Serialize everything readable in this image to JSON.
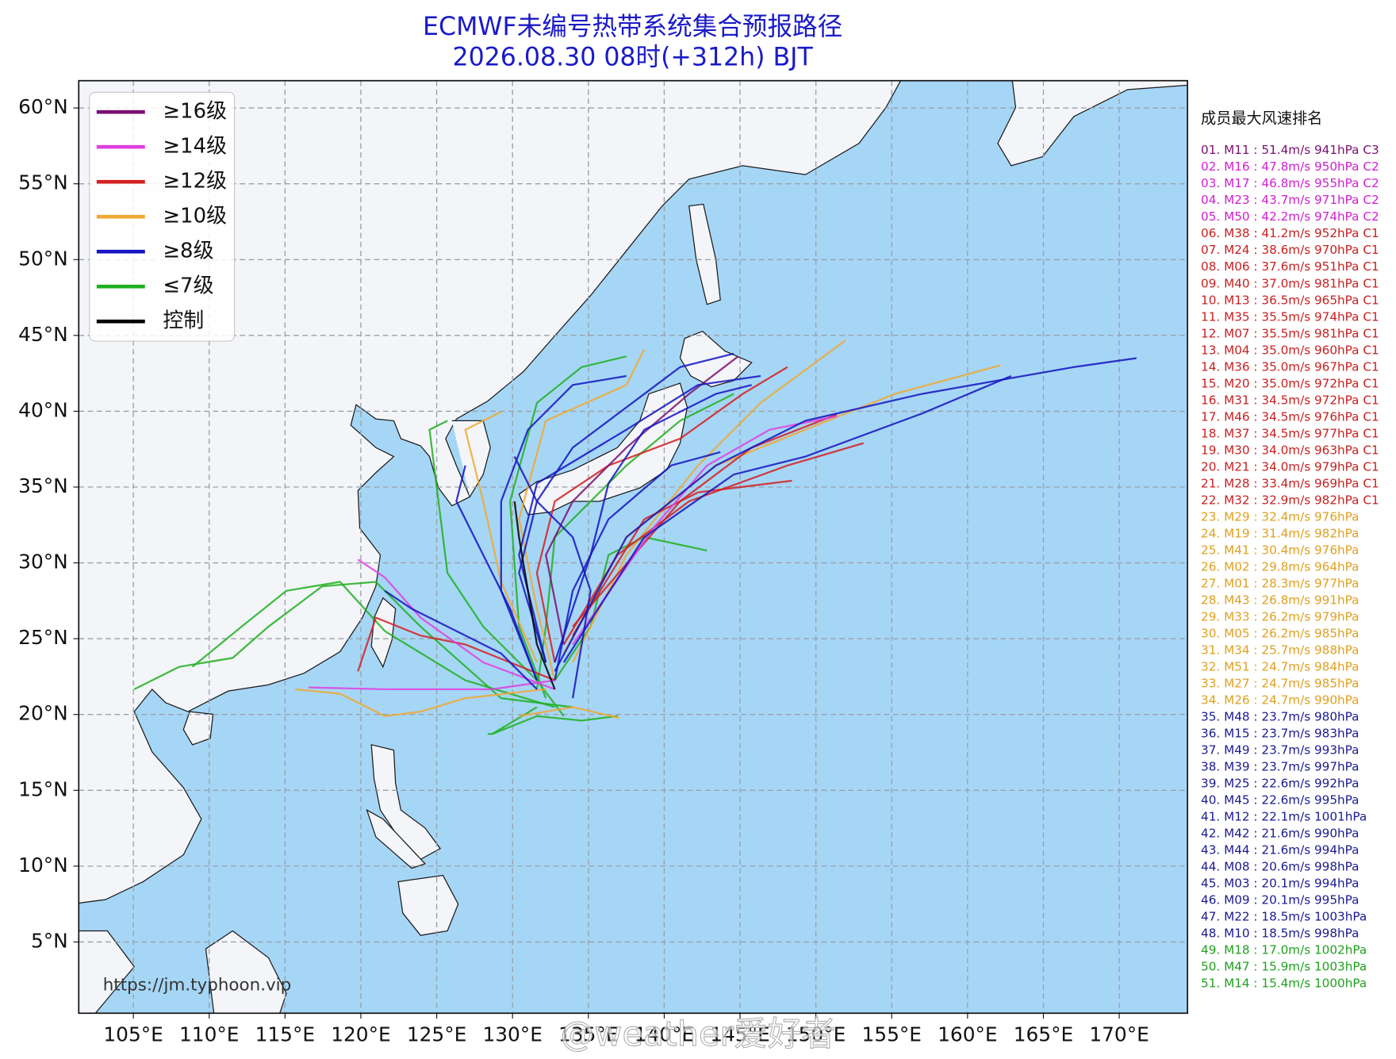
{
  "chart_data": {
    "type": "track-map",
    "title": "ECMWF未编号热带系统集合预报路径",
    "subtitle": "2026.08.30 08时(+312h) BJT",
    "title_color": "#1a1ac8",
    "xlim": [
      101.4,
      174.5
    ],
    "ylim": [
      0.3,
      61.8
    ],
    "grid": true,
    "xticks": [
      {
        "value": 105,
        "label": "105°E"
      },
      {
        "value": 110,
        "label": "110°E"
      },
      {
        "value": 115,
        "label": "115°E"
      },
      {
        "value": 120,
        "label": "120°E"
      },
      {
        "value": 125,
        "label": "125°E"
      },
      {
        "value": 130,
        "label": "130°E"
      },
      {
        "value": 135,
        "label": "135°E"
      },
      {
        "value": 140,
        "label": "140°E"
      },
      {
        "value": 145,
        "label": "145°E"
      },
      {
        "value": 150,
        "label": "150°E"
      },
      {
        "value": 155,
        "label": "155°E"
      },
      {
        "value": 160,
        "label": "160°E"
      },
      {
        "value": 165,
        "label": "165°E"
      },
      {
        "value": 170,
        "label": "170°E"
      }
    ],
    "yticks": [
      {
        "value": 5,
        "label": "5°N"
      },
      {
        "value": 10,
        "label": "10°N"
      },
      {
        "value": 15,
        "label": "15°N"
      },
      {
        "value": 20,
        "label": "20°N"
      },
      {
        "value": 25,
        "label": "25°N"
      },
      {
        "value": 30,
        "label": "30°N"
      },
      {
        "value": 35,
        "label": "35°N"
      },
      {
        "value": 40,
        "label": "40°N"
      },
      {
        "value": 45,
        "label": "45°N"
      },
      {
        "value": 50,
        "label": "50°N"
      },
      {
        "value": 55,
        "label": "55°N"
      },
      {
        "value": 60,
        "label": "60°N"
      }
    ],
    "legend": [
      {
        "name": "≥16级",
        "color": "#7a1070"
      },
      {
        "name": "≥14级",
        "color": "#e040e0"
      },
      {
        "name": "≥12级",
        "color": "#d42020"
      },
      {
        "name": "≥10级",
        "color": "#f0a830"
      },
      {
        "name": "≥8级",
        "color": "#1414c0"
      },
      {
        "name": "≤7级",
        "color": "#20b020"
      },
      {
        "name": "控制",
        "color": "#000000"
      }
    ],
    "ranking": {
      "title": "成员最大风速排名",
      "items": [
        {
          "text": "01. M11 : 51.4m/s 941hPa C3",
          "color": "#7a1070"
        },
        {
          "text": "02. M16 : 47.8m/s 950hPa C2",
          "color": "#d020d0"
        },
        {
          "text": "03. M17 : 46.8m/s 955hPa C2",
          "color": "#d020d0"
        },
        {
          "text": "04. M23 : 43.7m/s 971hPa C2",
          "color": "#d020d0"
        },
        {
          "text": "05. M50 : 42.2m/s 974hPa C2",
          "color": "#d020d0"
        },
        {
          "text": "06. M38 : 41.2m/s 952hPa C1",
          "color": "#c82020"
        },
        {
          "text": "07. M24 : 38.6m/s 970hPa C1",
          "color": "#c82020"
        },
        {
          "text": "08. M06 : 37.6m/s 951hPa C1",
          "color": "#c82020"
        },
        {
          "text": "09. M40 : 37.0m/s 981hPa C1",
          "color": "#c82020"
        },
        {
          "text": "10. M13 : 36.5m/s 965hPa C1",
          "color": "#c82020"
        },
        {
          "text": "11. M35 : 35.5m/s 974hPa C1",
          "color": "#c82020"
        },
        {
          "text": "12. M07 : 35.5m/s 981hPa C1",
          "color": "#c82020"
        },
        {
          "text": "13. M04 : 35.0m/s 960hPa C1",
          "color": "#c82020"
        },
        {
          "text": "14. M36 : 35.0m/s 967hPa C1",
          "color": "#c82020"
        },
        {
          "text": "15. M20 : 35.0m/s 972hPa C1",
          "color": "#c82020"
        },
        {
          "text": "16. M31 : 34.5m/s 972hPa C1",
          "color": "#c82020"
        },
        {
          "text": "17. M46 : 34.5m/s 976hPa C1",
          "color": "#c82020"
        },
        {
          "text": "18. M37 : 34.5m/s 977hPa C1",
          "color": "#c82020"
        },
        {
          "text": "19. M30 : 34.0m/s 963hPa C1",
          "color": "#c82020"
        },
        {
          "text": "20. M21 : 34.0m/s 979hPa C1",
          "color": "#c82020"
        },
        {
          "text": "21. M28 : 33.4m/s 969hPa C1",
          "color": "#c82020"
        },
        {
          "text": "22. M32 : 32.9m/s 982hPa C1",
          "color": "#c82020"
        },
        {
          "text": "23. M29 : 32.4m/s 976hPa",
          "color": "#e0a020"
        },
        {
          "text": "24. M19 : 31.4m/s 982hPa",
          "color": "#e0a020"
        },
        {
          "text": "25. M41 : 30.4m/s 976hPa",
          "color": "#e0a020"
        },
        {
          "text": "26. M02 : 29.8m/s 964hPa",
          "color": "#e0a020"
        },
        {
          "text": "27. M01 : 28.3m/s 977hPa",
          "color": "#e0a020"
        },
        {
          "text": "28. M43 : 26.8m/s 991hPa",
          "color": "#e0a020"
        },
        {
          "text": "29. M33 : 26.2m/s 979hPa",
          "color": "#e0a020"
        },
        {
          "text": "30. M05 : 26.2m/s 985hPa",
          "color": "#e0a020"
        },
        {
          "text": "31. M34 : 25.7m/s 988hPa",
          "color": "#e0a020"
        },
        {
          "text": "32. M51 : 24.7m/s 984hPa",
          "color": "#e0a020"
        },
        {
          "text": "33. M27 : 24.7m/s 985hPa",
          "color": "#e0a020"
        },
        {
          "text": "34. M26 : 24.7m/s 990hPa",
          "color": "#e0a020"
        },
        {
          "text": "35. M48 : 23.7m/s 980hPa",
          "color": "#1a1a90"
        },
        {
          "text": "36. M15 : 23.7m/s 983hPa",
          "color": "#1a1a90"
        },
        {
          "text": "37. M49 : 23.7m/s 993hPa",
          "color": "#1a1a90"
        },
        {
          "text": "38. M39 : 23.7m/s 997hPa",
          "color": "#1a1a90"
        },
        {
          "text": "39. M25 : 22.6m/s 992hPa",
          "color": "#1a1a90"
        },
        {
          "text": "40. M45 : 22.6m/s 995hPa",
          "color": "#1a1a90"
        },
        {
          "text": "41. M12 : 22.1m/s 1001hPa",
          "color": "#1a1a90"
        },
        {
          "text": "42. M42 : 21.6m/s 990hPa",
          "color": "#1a1a90"
        },
        {
          "text": "43. M44 : 21.6m/s 994hPa",
          "color": "#1a1a90"
        },
        {
          "text": "44. M08 : 20.6m/s 998hPa",
          "color": "#1a1a90"
        },
        {
          "text": "45. M03 : 20.1m/s 994hPa",
          "color": "#1a1a90"
        },
        {
          "text": "46. M09 : 20.1m/s 995hPa",
          "color": "#1a1a90"
        },
        {
          "text": "47. M22 : 18.5m/s 1003hPa",
          "color": "#1a1a90"
        },
        {
          "text": "48. M10 : 18.5m/s 998hPa",
          "color": "#1a1a90"
        },
        {
          "text": "49. M18 : 17.0m/s 1002hPa",
          "color": "#20a020"
        },
        {
          "text": "50. M47 : 15.9m/s 1003hPa",
          "color": "#20a020"
        },
        {
          "text": "51. M14 : 15.4m/s 1000hPa",
          "color": "#20a020"
        }
      ]
    },
    "source": "https://jm.typhoon.vip",
    "watermark": "@weather爱好者"
  }
}
